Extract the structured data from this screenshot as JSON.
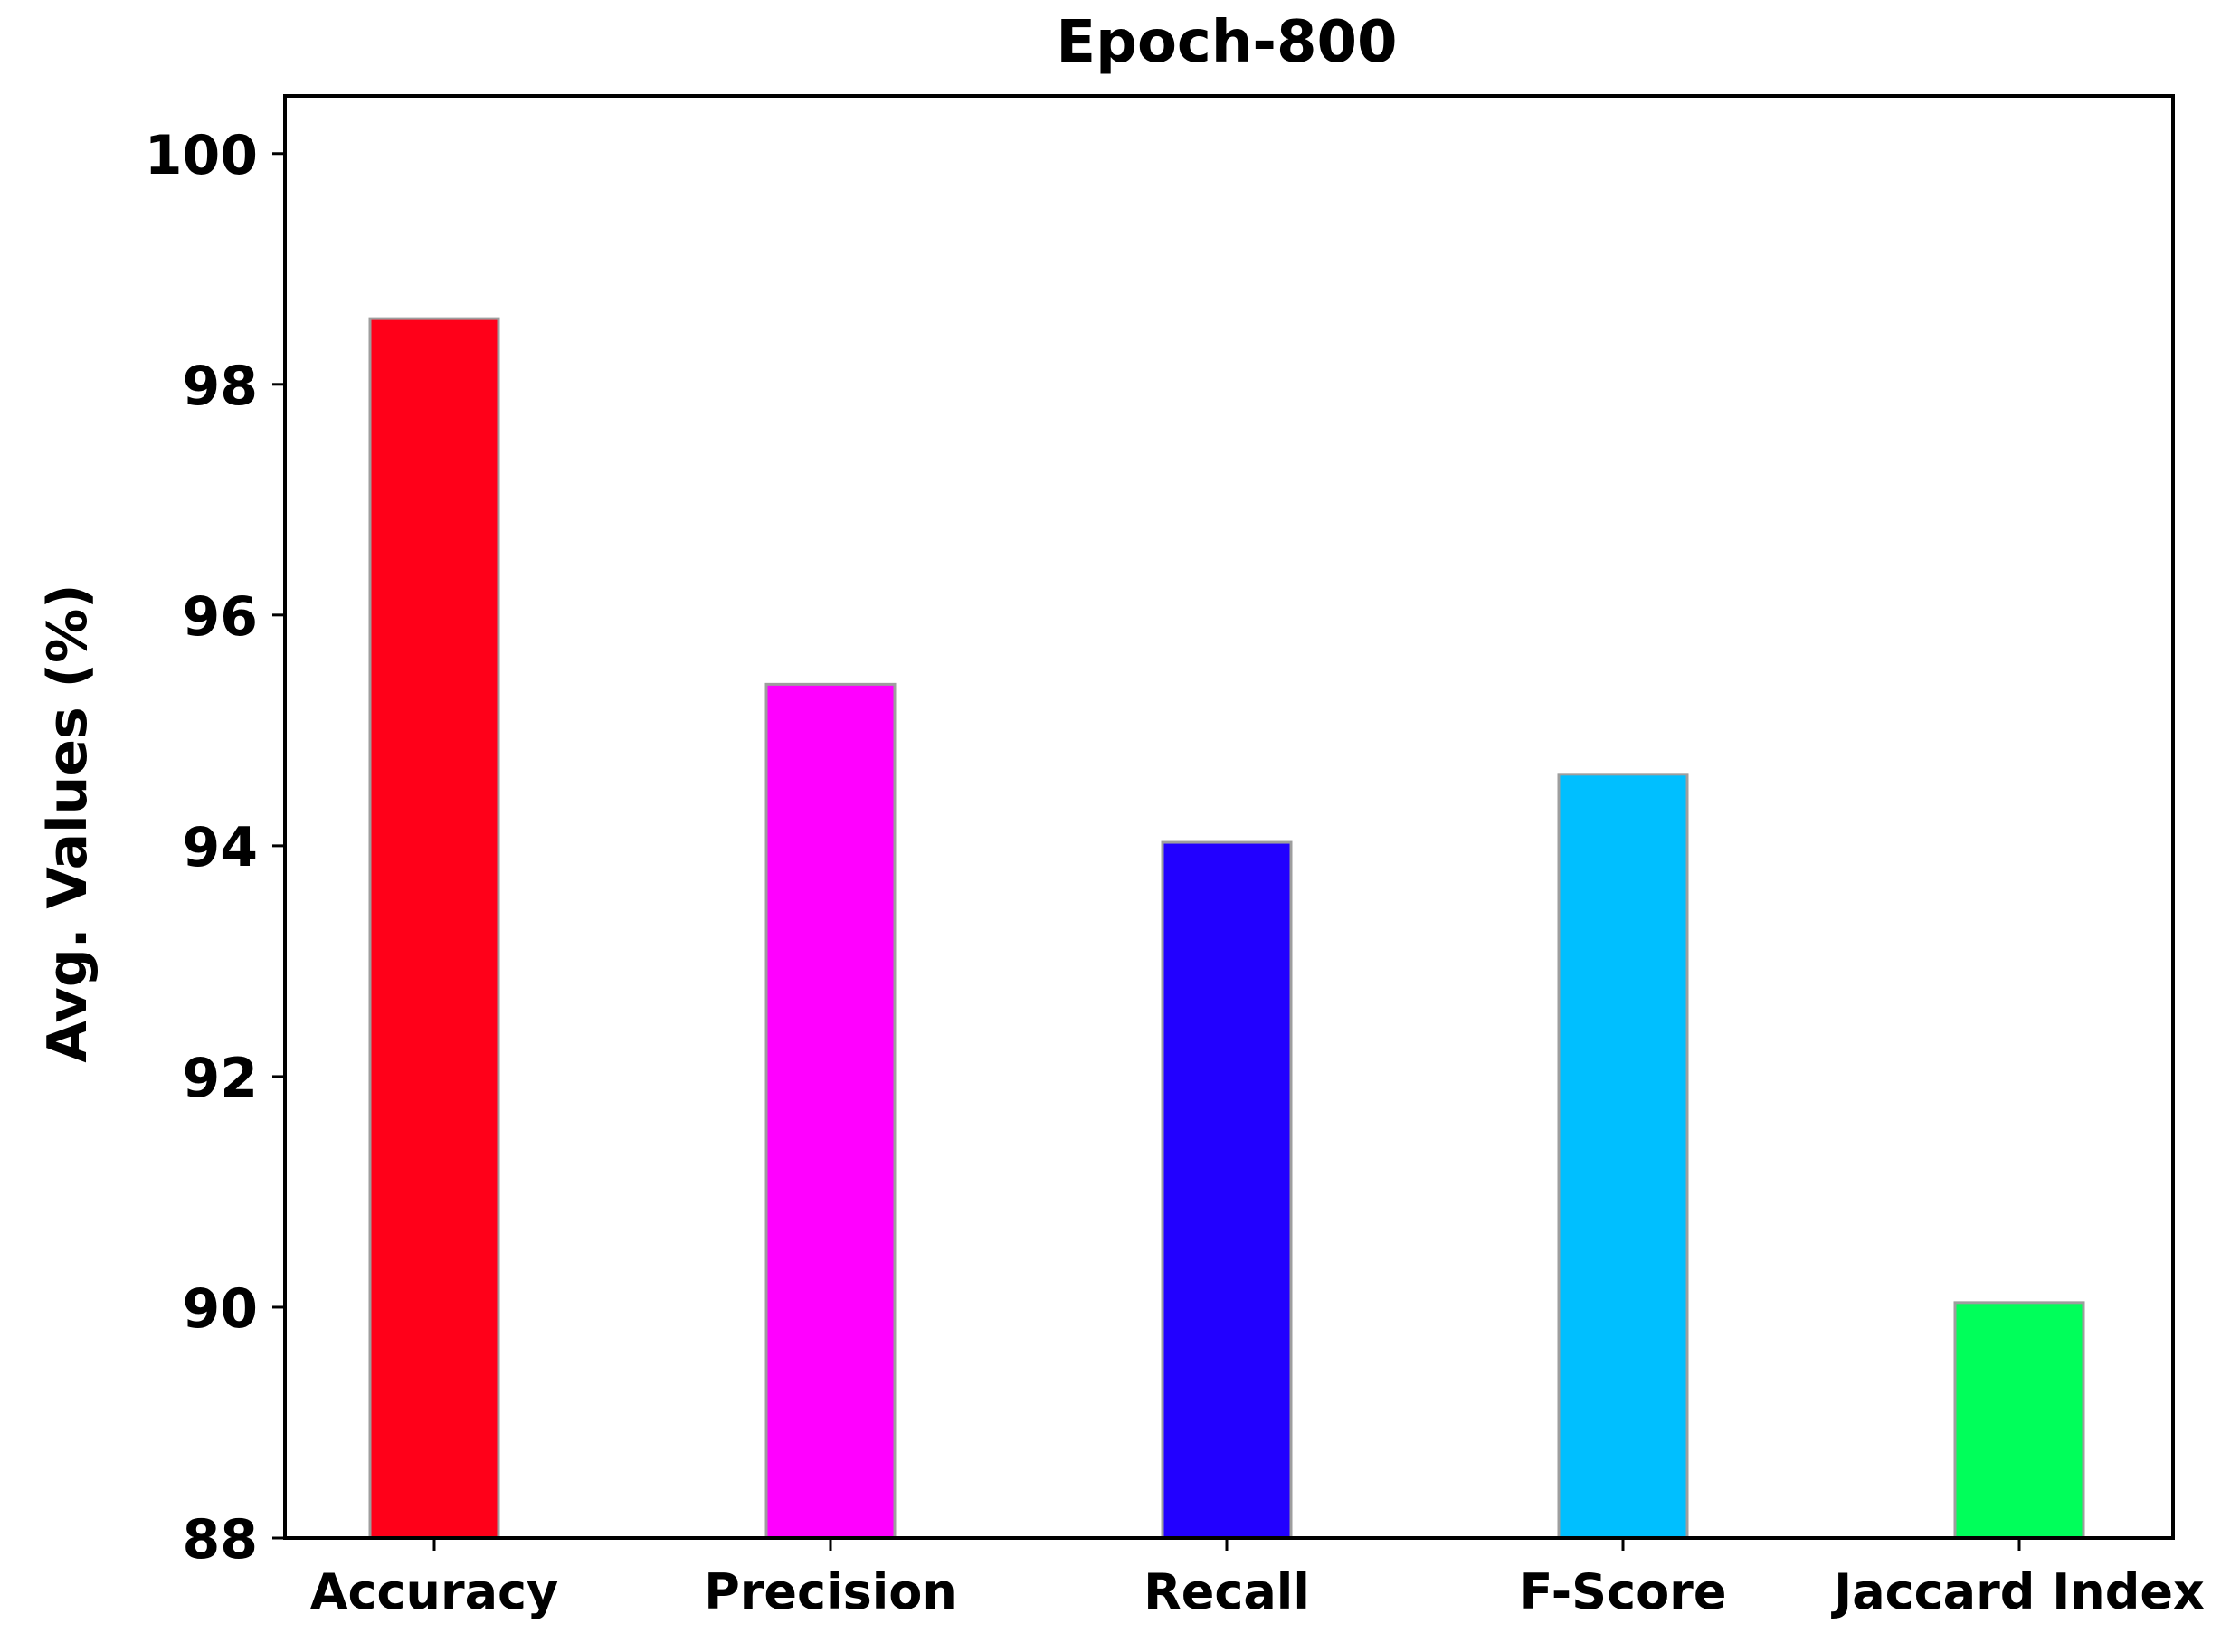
{
  "chart_data": {
    "type": "bar",
    "title": "Epoch-800",
    "xlabel": "",
    "ylabel": "Avg. Values (%)",
    "categories": [
      "Accuracy",
      "Precision",
      "Recall",
      "F-Score",
      "Jaccard Index"
    ],
    "values": [
      98.57,
      95.4,
      94.03,
      94.62,
      90.04
    ],
    "colors": [
      "#ff0019",
      "#ff00ff",
      "#2200ff",
      "#00bfff",
      "#00ff5a"
    ],
    "ylim": [
      88,
      100.5
    ],
    "yticks": [
      88,
      90,
      92,
      94,
      96,
      98,
      100
    ],
    "grid": false,
    "legend": "none"
  }
}
